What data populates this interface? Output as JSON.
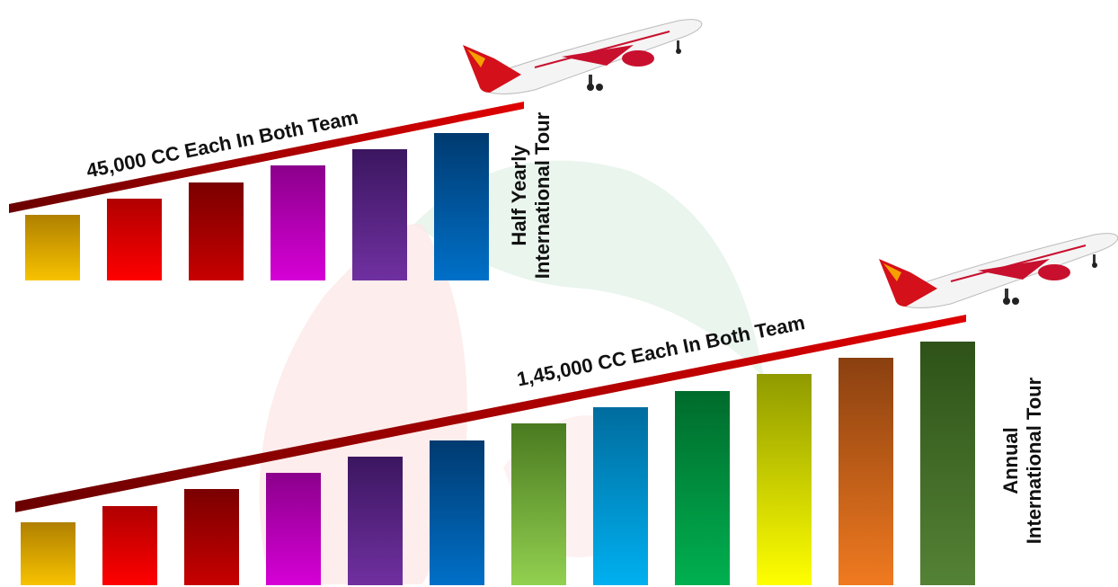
{
  "top_section": {
    "band_text": "45,000 CC Each In Both Team",
    "side_label": {
      "line1": "Half Yearly",
      "line2": "International Tour"
    },
    "bar_colors": [
      [
        "#b08000",
        "#f7c200"
      ],
      [
        "#b00000",
        "#ff0000"
      ],
      [
        "#7a0000",
        "#c80000"
      ],
      [
        "#8b008b",
        "#d600d6"
      ],
      [
        "#3b1660",
        "#7030a0"
      ],
      [
        "#003a70",
        "#0070c8"
      ]
    ]
  },
  "bottom_section": {
    "band_text": "1,45,000 CC Each In Both Team",
    "side_label": {
      "line1": "Annual",
      "line2": "International Tour"
    },
    "bar_colors": [
      [
        "#b08000",
        "#f7c200"
      ],
      [
        "#b00000",
        "#ff0000"
      ],
      [
        "#7a0000",
        "#c80000"
      ],
      [
        "#8b008b",
        "#d600d6"
      ],
      [
        "#3b1660",
        "#7030a0"
      ],
      [
        "#003a70",
        "#0070c8"
      ],
      [
        "#4a7a20",
        "#92d050"
      ],
      [
        "#006c9e",
        "#00b0f0"
      ],
      [
        "#006b2c",
        "#00b050"
      ],
      [
        "#8f9a00",
        "#ffff00"
      ],
      [
        "#8a4010",
        "#f07a20"
      ],
      [
        "#2e5218",
        "#548235"
      ]
    ]
  },
  "colors": {
    "band": "#c00000",
    "band_dark": "#6b0000"
  }
}
